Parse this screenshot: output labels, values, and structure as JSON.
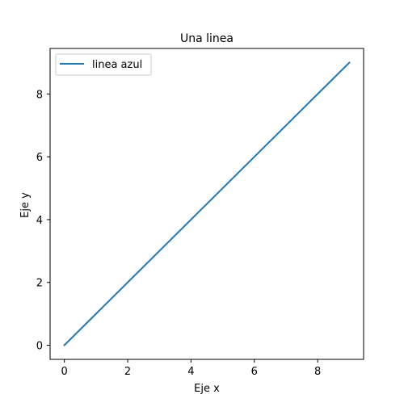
{
  "chart_data": {
    "type": "line",
    "title": "Una linea",
    "xlabel": "Eje x",
    "ylabel": "Eje y",
    "xlim": [
      -0.45,
      9.45
    ],
    "ylim": [
      -0.45,
      9.45
    ],
    "xticks": [
      0,
      2,
      4,
      6,
      8
    ],
    "yticks": [
      0,
      2,
      4,
      6,
      8
    ],
    "grid": false,
    "legend_position": "upper left",
    "series": [
      {
        "name": "linea azul",
        "color": "#1f77b4",
        "x": [
          0,
          1,
          2,
          3,
          4,
          5,
          6,
          7,
          8,
          9
        ],
        "y": [
          0,
          1,
          2,
          3,
          4,
          5,
          6,
          7,
          8,
          9
        ]
      }
    ]
  }
}
